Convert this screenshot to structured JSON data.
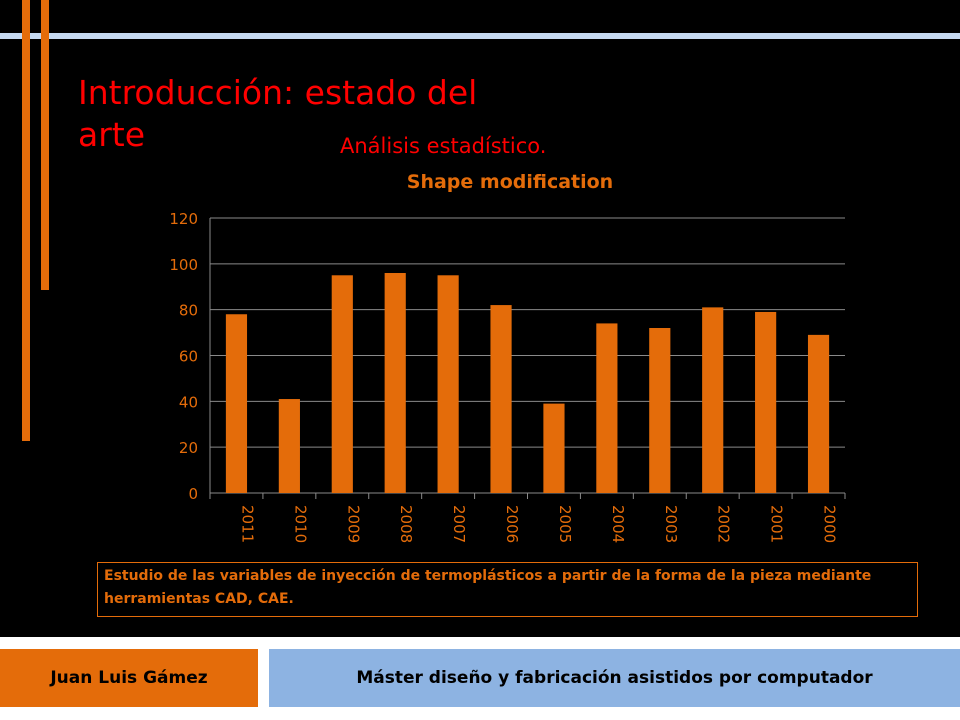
{
  "slide": {
    "title": "Introducción: estado del arte",
    "subtitle": "Análisis estadístico.",
    "description": "Estudio de las variables de inyección de termoplásticos a partir de la forma de la pieza mediante herramientas CAD, CAE."
  },
  "footer": {
    "author": "Juan Luis Gámez",
    "program": "Máster diseño y fabricación asistidos por computador"
  },
  "colors": {
    "accent": "#e46c0a",
    "title": "#ff0000",
    "footer_right": "#8db3e2",
    "background": "#000000"
  },
  "chart_data": {
    "type": "bar",
    "title": "Shape modification",
    "categories": [
      "2011",
      "2010",
      "2009",
      "2008",
      "2007",
      "2006",
      "2005",
      "2004",
      "2003",
      "2002",
      "2001",
      "2000"
    ],
    "values": [
      78,
      41,
      95,
      96,
      95,
      82,
      39,
      74,
      72,
      81,
      79,
      69
    ],
    "ylim": [
      0,
      120
    ],
    "yticks": [
      0,
      20,
      40,
      60,
      80,
      100,
      120
    ],
    "grid": true,
    "legend": "none",
    "bar_color": "#e46c0a"
  }
}
